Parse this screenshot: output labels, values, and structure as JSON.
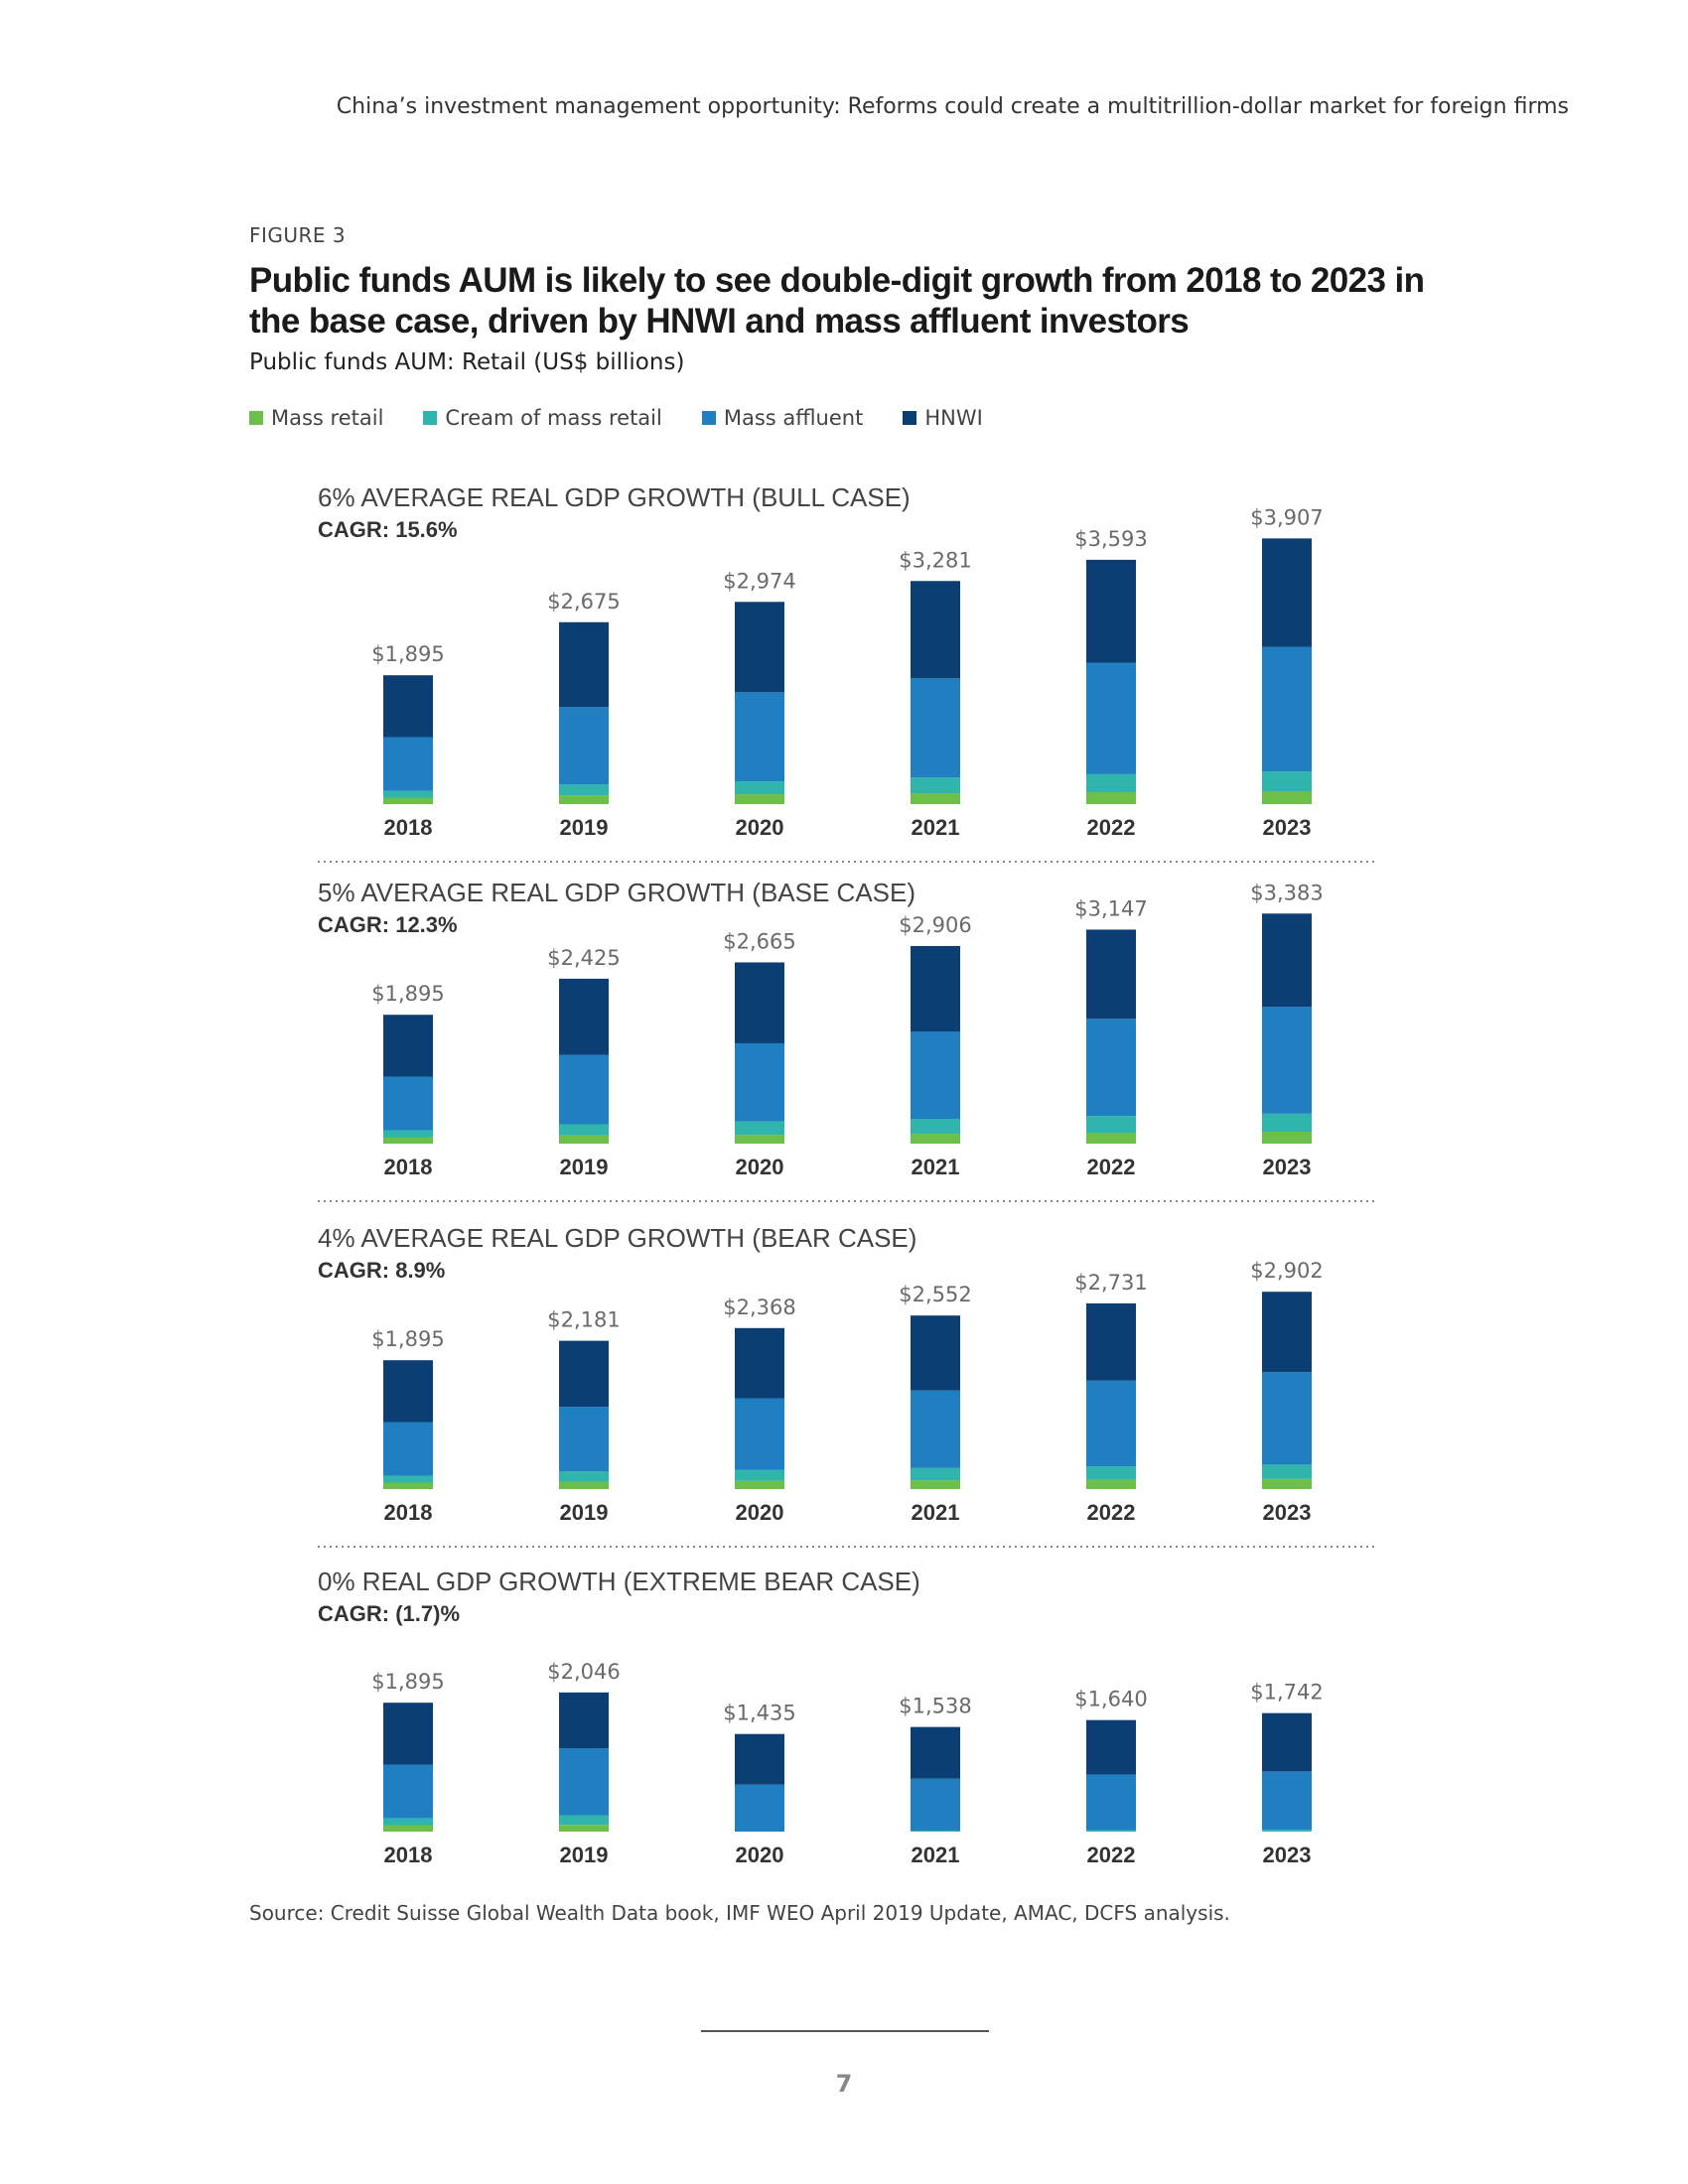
{
  "header": {
    "running_title": "China’s investment management opportunity: Reforms could create a multitrillion-dollar market for foreign firms"
  },
  "figure": {
    "label": "FIGURE 3",
    "title": "Public funds AUM is likely to see double-digit growth from 2018 to 2023 in the base case, driven by HNWI and mass affluent investors",
    "subtitle": "Public funds AUM: Retail (US$ billions)"
  },
  "legend": [
    {
      "name": "Mass retail",
      "color": "#6cc04a"
    },
    {
      "name": "Cream of mass retail",
      "color": "#2fb5ab"
    },
    {
      "name": "Mass affluent",
      "color": "#1f7fc1"
    },
    {
      "name": "HNWI",
      "color": "#0b3f73"
    }
  ],
  "chart_data": [
    {
      "type": "bar",
      "stacked": true,
      "title": "6% AVERAGE REAL GDP GROWTH (BULL CASE)",
      "cagr": "CAGR: 15.6%",
      "categories": [
        "2018",
        "2019",
        "2020",
        "2021",
        "2022",
        "2023"
      ],
      "total_labels": [
        "$1,895",
        "$2,675",
        "$2,974",
        "$3,281",
        "$3,593",
        "$3,907"
      ],
      "totals": [
        1895,
        2675,
        2974,
        3281,
        3593,
        3907
      ],
      "series": [
        {
          "name": "Mass retail",
          "values": [
            95,
            130,
            145,
            160,
            175,
            190
          ]
        },
        {
          "name": "Cream of mass retail",
          "values": [
            100,
            160,
            190,
            230,
            265,
            290
          ]
        },
        {
          "name": "Mass affluent",
          "values": [
            790,
            1140,
            1310,
            1460,
            1640,
            1830
          ]
        },
        {
          "name": "HNWI",
          "values": [
            910,
            1245,
            1329,
            1431,
            1513,
            1597
          ]
        }
      ]
    },
    {
      "type": "bar",
      "stacked": true,
      "title": "5% AVERAGE REAL GDP GROWTH (BASE CASE)",
      "cagr": "CAGR: 12.3%",
      "categories": [
        "2018",
        "2019",
        "2020",
        "2021",
        "2022",
        "2023"
      ],
      "total_labels": [
        "$1,895",
        "$2,425",
        "$2,665",
        "$2,906",
        "$3,147",
        "$3,383"
      ],
      "totals": [
        1895,
        2425,
        2665,
        2906,
        3147,
        3383
      ],
      "series": [
        {
          "name": "Mass retail",
          "values": [
            95,
            120,
            130,
            145,
            160,
            175
          ]
        },
        {
          "name": "Cream of mass retail",
          "values": [
            100,
            165,
            195,
            220,
            245,
            265
          ]
        },
        {
          "name": "Mass affluent",
          "values": [
            790,
            1020,
            1150,
            1280,
            1430,
            1570
          ]
        },
        {
          "name": "HNWI",
          "values": [
            910,
            1120,
            1190,
            1261,
            1312,
            1373
          ]
        }
      ]
    },
    {
      "type": "bar",
      "stacked": true,
      "title": "4% AVERAGE REAL GDP GROWTH (BEAR CASE)",
      "cagr": "CAGR: 8.9%",
      "categories": [
        "2018",
        "2019",
        "2020",
        "2021",
        "2022",
        "2023"
      ],
      "total_labels": [
        "$1,895",
        "$2,181",
        "$2,368",
        "$2,552",
        "$2,731",
        "$2,902"
      ],
      "totals": [
        1895,
        2181,
        2368,
        2552,
        2731,
        2902
      ],
      "series": [
        {
          "name": "Mass retail",
          "values": [
            95,
            110,
            120,
            130,
            140,
            150
          ]
        },
        {
          "name": "Cream of mass retail",
          "values": [
            100,
            150,
            165,
            180,
            195,
            210
          ]
        },
        {
          "name": "Mass affluent",
          "values": [
            790,
            950,
            1050,
            1140,
            1260,
            1360
          ]
        },
        {
          "name": "HNWI",
          "values": [
            910,
            971,
            1033,
            1102,
            1136,
            1182
          ]
        }
      ]
    },
    {
      "type": "bar",
      "stacked": true,
      "title": "0% REAL GDP GROWTH (EXTREME BEAR CASE)",
      "cagr": "CAGR: (1.7)%",
      "categories": [
        "2018",
        "2019",
        "2020",
        "2021",
        "2022",
        "2023"
      ],
      "total_labels": [
        "$1,895",
        "$2,046",
        "$1,435",
        "$1,538",
        "$1,640",
        "$1,742"
      ],
      "totals": [
        1895,
        2046,
        1435,
        1538,
        1640,
        1742
      ],
      "series": [
        {
          "name": "Mass retail",
          "values": [
            95,
            100,
            0,
            0,
            0,
            0
          ]
        },
        {
          "name": "Cream of mass retail",
          "values": [
            100,
            140,
            0,
            15,
            20,
            25
          ]
        },
        {
          "name": "Mass affluent",
          "values": [
            790,
            985,
            690,
            765,
            820,
            860
          ]
        },
        {
          "name": "HNWI",
          "values": [
            910,
            821,
            745,
            758,
            800,
            857
          ]
        }
      ]
    }
  ],
  "source": "Source: Credit Suisse Global Wealth Data book, IMF WEO April 2019 Update, AMAC, DCFS analysis.",
  "footer": {
    "page_number": "7"
  }
}
